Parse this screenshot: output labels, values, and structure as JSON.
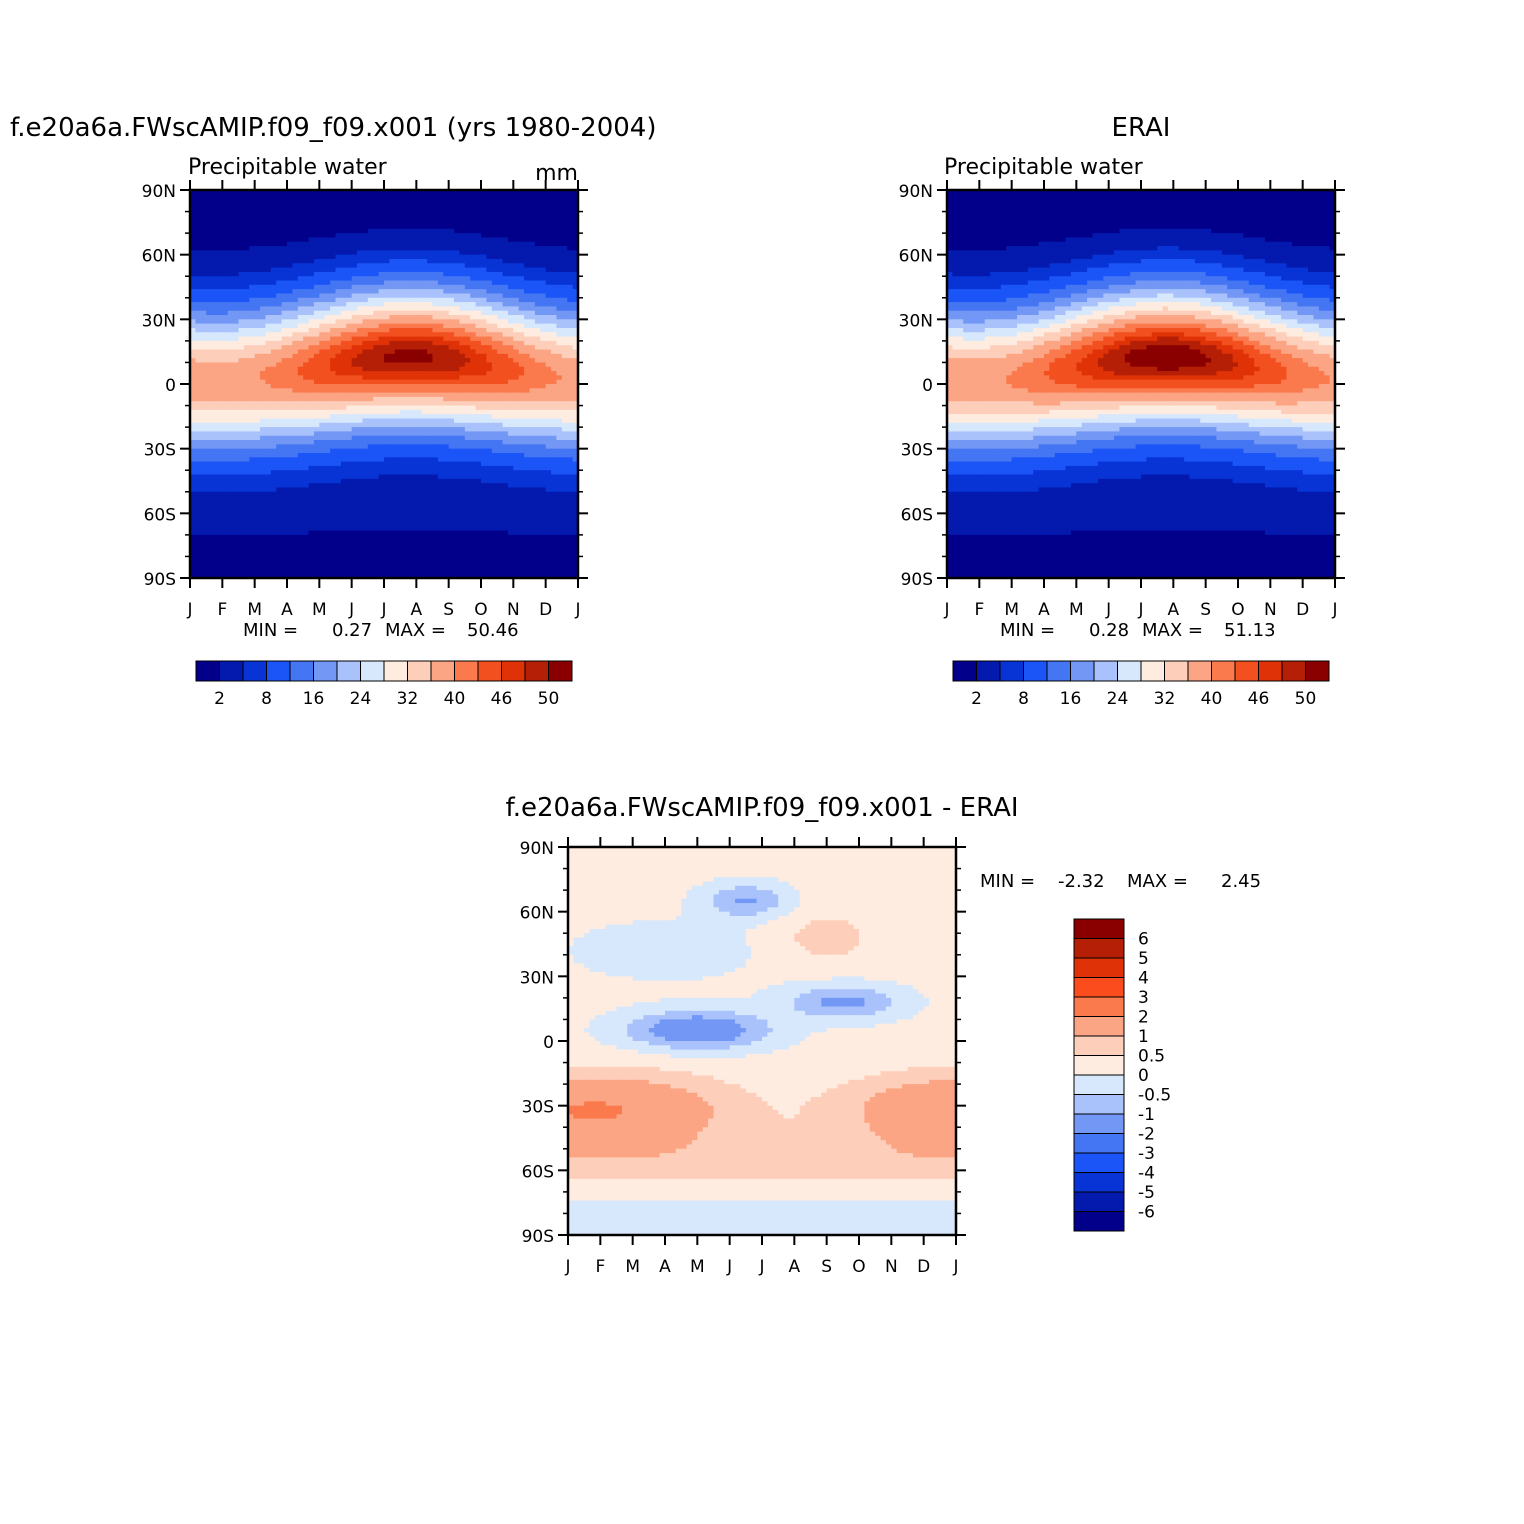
{
  "panels": [
    {
      "id": "model",
      "title": "f.e20a6a.FWscAMIP.f09_f09.x001 (yrs 1980-2004)",
      "subtitle": "Precipitable water",
      "units": "mm",
      "stats": {
        "min_label": "MIN =",
        "min": "0.27",
        "max_label": "MAX =",
        "max": "50.46"
      }
    },
    {
      "id": "erai",
      "title": "ERAI",
      "subtitle": "Precipitable water",
      "units": "",
      "stats": {
        "min_label": "MIN =",
        "min": "0.28",
        "max_label": "MAX =",
        "max": "51.13"
      }
    },
    {
      "id": "diff",
      "title": "f.e20a6a.FWscAMIP.f09_f09.x001 - ERAI",
      "subtitle": "",
      "units": "",
      "stats": {
        "min_label": "MIN =",
        "min": "-2.32",
        "max_label": "MAX =",
        "max": "2.45"
      }
    }
  ],
  "chart_data": [
    {
      "type": "heatmap",
      "title": "f.e20a6a.FWscAMIP.f09_f09.x001 (yrs 1980-2004)",
      "subtitle": "Precipitable water",
      "units": "mm",
      "x_tick_labels": [
        "J",
        "F",
        "M",
        "A",
        "M",
        "J",
        "J",
        "A",
        "S",
        "O",
        "N",
        "D",
        "J"
      ],
      "y_tick_labels": [
        "90N",
        "60N",
        "30N",
        "0",
        "30S",
        "60S",
        "90S"
      ],
      "y_ticks": [
        90,
        60,
        30,
        0,
        -30,
        -60,
        -90
      ],
      "xlim": [
        0,
        12
      ],
      "ylim": [
        -90,
        90
      ],
      "min": 0.27,
      "max": 50.46,
      "colorbar": {
        "colors": [
          "#02008a",
          "#0419ad",
          "#0834d6",
          "#1b55f7",
          "#4475f2",
          "#7397f5",
          "#a9c2fb",
          "#d7e8fc",
          "#ffece0",
          "#fdcfba",
          "#fba584",
          "#fa7a4e",
          "#f2501f",
          "#e03207",
          "#b51f06",
          "#8a0000"
        ],
        "tick_labels": [
          "2",
          "8",
          "16",
          "24",
          "32",
          "40",
          "46",
          "50"
        ]
      }
    },
    {
      "type": "heatmap",
      "title": "ERAI",
      "subtitle": "Precipitable water",
      "x_tick_labels": [
        "J",
        "F",
        "M",
        "A",
        "M",
        "J",
        "J",
        "A",
        "S",
        "O",
        "N",
        "D",
        "J"
      ],
      "y_tick_labels": [
        "90N",
        "60N",
        "30N",
        "0",
        "30S",
        "60S",
        "90S"
      ],
      "y_ticks": [
        90,
        60,
        30,
        0,
        -30,
        -60,
        -90
      ],
      "xlim": [
        0,
        12
      ],
      "ylim": [
        -90,
        90
      ],
      "min": 0.28,
      "max": 51.13,
      "colorbar": {
        "colors": [
          "#02008a",
          "#0419ad",
          "#0834d6",
          "#1b55f7",
          "#4475f2",
          "#7397f5",
          "#a9c2fb",
          "#d7e8fc",
          "#ffece0",
          "#fdcfba",
          "#fba584",
          "#fa7a4e",
          "#f2501f",
          "#e03207",
          "#b51f06",
          "#8a0000"
        ],
        "tick_labels": [
          "2",
          "8",
          "16",
          "24",
          "32",
          "40",
          "46",
          "50"
        ]
      }
    },
    {
      "type": "heatmap",
      "title": "f.e20a6a.FWscAMIP.f09_f09.x001 - ERAI",
      "x_tick_labels": [
        "J",
        "F",
        "M",
        "A",
        "M",
        "J",
        "J",
        "A",
        "S",
        "O",
        "N",
        "D",
        "J"
      ],
      "y_tick_labels": [
        "90N",
        "60N",
        "30N",
        "0",
        "30S",
        "60S",
        "90S"
      ],
      "y_ticks": [
        90,
        60,
        30,
        0,
        -30,
        -60,
        -90
      ],
      "xlim": [
        0,
        12
      ],
      "ylim": [
        -90,
        90
      ],
      "min": -2.32,
      "max": 2.45,
      "colorbar": {
        "colors": [
          "#8a0000",
          "#b51f06",
          "#e03207",
          "#fa4c1d",
          "#fa7a4e",
          "#fba584",
          "#fdcfba",
          "#ffece0",
          "#d7e8fc",
          "#a9c2fb",
          "#7397f5",
          "#4475f2",
          "#1b55f7",
          "#0834d6",
          "#0419ad",
          "#02008a"
        ],
        "tick_labels": [
          "6",
          "5",
          "4",
          "3",
          "2",
          "1",
          "0.5",
          "0",
          "-0.5",
          "-1",
          "-2",
          "-3",
          "-4",
          "-5",
          "-6"
        ]
      }
    }
  ]
}
